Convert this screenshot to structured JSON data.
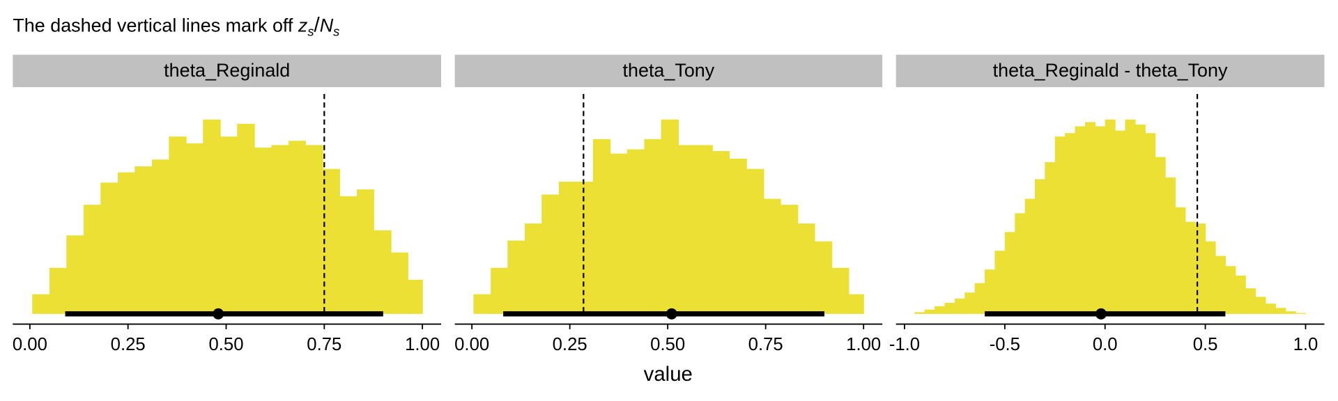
{
  "title": [
    "The dashed vertical lines mark off ",
    "z",
    "s",
    "/",
    "N",
    "s"
  ],
  "xlabel": "value",
  "chart_data": [
    {
      "type": "histogram",
      "title": "theta_Reginald",
      "color": "#ebe033",
      "bins": [
        0.006,
        0.05,
        0.093,
        0.137,
        0.18,
        0.224,
        0.267,
        0.311,
        0.354,
        0.398,
        0.441,
        0.485,
        0.528,
        0.572,
        0.615,
        0.659,
        0.702,
        0.746,
        0.789,
        0.833,
        0.876,
        0.92,
        0.963,
        1.0
      ],
      "values": [
        23,
        54,
        92,
        128,
        154,
        166,
        173,
        181,
        208,
        200,
        228,
        208,
        223,
        195,
        198,
        203,
        198,
        170,
        138,
        146,
        98,
        72,
        40
      ],
      "point": 0.48,
      "interval": [
        0.09,
        0.9
      ],
      "vline": 0.75,
      "xlim": [
        -0.0435,
        1.0478
      ],
      "ylim": [
        0,
        230
      ],
      "xticks": [
        {
          "value": 0,
          "label": "0.00"
        },
        {
          "value": 0.25,
          "label": "0.25"
        },
        {
          "value": 0.5,
          "label": "0.50"
        },
        {
          "value": 0.75,
          "label": "0.75"
        },
        {
          "value": 1,
          "label": "1.00"
        }
      ]
    },
    {
      "type": "histogram",
      "title": "theta_Tony",
      "color": "#ebe033",
      "bins": [
        0.004,
        0.048,
        0.091,
        0.135,
        0.178,
        0.222,
        0.265,
        0.309,
        0.353,
        0.396,
        0.44,
        0.483,
        0.527,
        0.57,
        0.614,
        0.657,
        0.701,
        0.745,
        0.788,
        0.832,
        0.875,
        0.919,
        0.962,
        1.0
      ],
      "values": [
        23,
        54,
        86,
        106,
        140,
        155,
        155,
        205,
        188,
        193,
        205,
        228,
        198,
        198,
        191,
        182,
        170,
        135,
        128,
        106,
        85,
        54,
        23
      ],
      "point": 0.51,
      "interval": [
        0.08,
        0.9
      ],
      "vline": 0.285,
      "xlim": [
        -0.0436,
        1.0479
      ],
      "ylim": [
        0,
        230
      ],
      "xticks": [
        {
          "value": 0,
          "label": "0.00"
        },
        {
          "value": 0.25,
          "label": "0.25"
        },
        {
          "value": 0.5,
          "label": "0.50"
        },
        {
          "value": 0.75,
          "label": "0.75"
        },
        {
          "value": 1,
          "label": "1.00"
        }
      ]
    },
    {
      "type": "histogram",
      "title": "theta_Reginald - theta_Tony",
      "color": "#ebe033",
      "bins": [
        -0.95,
        -0.9,
        -0.85,
        -0.8,
        -0.75,
        -0.7,
        -0.65,
        -0.6,
        -0.55,
        -0.5,
        -0.45,
        -0.4,
        -0.35,
        -0.3,
        -0.25,
        -0.2,
        -0.15,
        -0.1,
        -0.05,
        0,
        0.05,
        0.1,
        0.15,
        0.2,
        0.25,
        0.3,
        0.35,
        0.4,
        0.45,
        0.5,
        0.55,
        0.6,
        0.65,
        0.7,
        0.75,
        0.8,
        0.85,
        0.9,
        0.95,
        1.0
      ],
      "values": [
        2,
        5,
        9,
        13,
        18,
        25,
        36,
        52,
        74,
        96,
        118,
        135,
        158,
        178,
        208,
        212,
        220,
        225,
        220,
        228,
        215,
        228,
        222,
        212,
        184,
        160,
        125,
        108,
        106,
        85,
        68,
        56,
        45,
        30,
        20,
        12,
        7,
        3,
        1
      ],
      "point": -0.02,
      "interval": [
        -0.6,
        0.6
      ],
      "vline": 0.46,
      "xlim": [
        -1.0426,
        1.0936
      ],
      "ylim": [
        0,
        230
      ],
      "xticks": [
        {
          "value": -1,
          "label": "-1.0"
        },
        {
          "value": -0.5,
          "label": "-0.5"
        },
        {
          "value": 0,
          "label": "0.0"
        },
        {
          "value": 0.5,
          "label": "0.5"
        },
        {
          "value": 1,
          "label": "1.0"
        }
      ]
    }
  ]
}
